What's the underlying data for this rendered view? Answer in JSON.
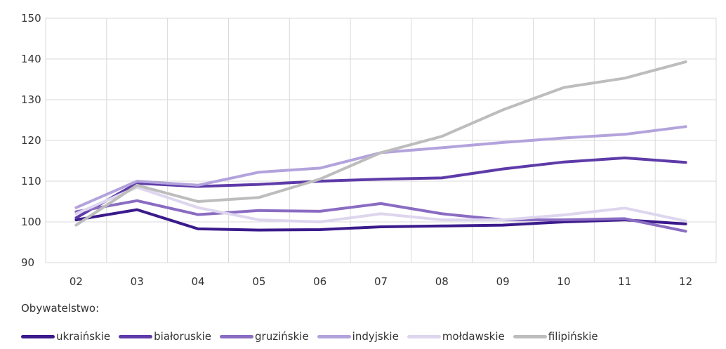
{
  "chart_data": {
    "type": "line",
    "title": "",
    "xlabel": "",
    "ylabel": "",
    "categories": [
      "02",
      "03",
      "04",
      "05",
      "06",
      "07",
      "08",
      "09",
      "10",
      "11",
      "12"
    ],
    "ylim": [
      90,
      150
    ],
    "yticks": [
      90,
      100,
      110,
      120,
      130,
      140,
      150
    ],
    "grid": true,
    "legend_title": "Obywatelstwo:",
    "legend_position": "bottom",
    "series": [
      {
        "name": "ukraińskie",
        "color": "#3b1a8c",
        "values": [
          100.5,
          103.0,
          98.3,
          98.0,
          98.1,
          98.8,
          99.0,
          99.2,
          100.0,
          100.5,
          99.5
        ]
      },
      {
        "name": "białoruskie",
        "color": "#5e3ba8",
        "values": [
          101.0,
          109.5,
          108.7,
          109.2,
          110.0,
          110.5,
          110.8,
          113.0,
          114.7,
          115.7,
          114.6
        ]
      },
      {
        "name": "gruzińskie",
        "color": "#8a6cc2",
        "values": [
          102.5,
          105.2,
          101.8,
          102.8,
          102.6,
          104.5,
          102.0,
          100.5,
          100.5,
          100.8,
          97.7
        ]
      },
      {
        "name": "indyjskie",
        "color": "#b3a3dc",
        "values": [
          103.5,
          110.0,
          109.0,
          112.2,
          113.2,
          117.0,
          118.2,
          119.5,
          120.6,
          121.5,
          123.4
        ]
      },
      {
        "name": "mołdawskie",
        "color": "#ddd6ee",
        "values": [
          102.0,
          108.5,
          103.5,
          100.5,
          100.0,
          102.0,
          100.5,
          100.5,
          101.7,
          103.4,
          100.2
        ]
      },
      {
        "name": "filipińskie",
        "color": "#bdbdbd",
        "values": [
          99.2,
          109.0,
          105.0,
          106.0,
          110.5,
          117.0,
          121.0,
          127.5,
          133.0,
          135.3,
          139.3
        ]
      }
    ]
  }
}
